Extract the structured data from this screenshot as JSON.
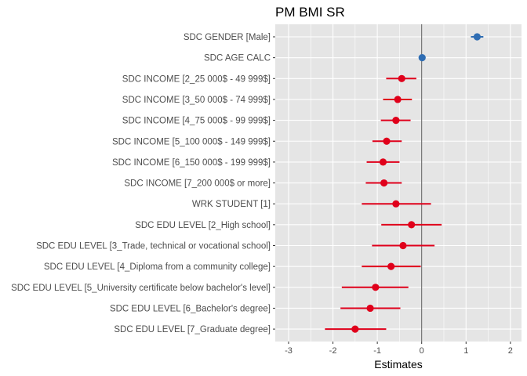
{
  "chart_data": {
    "type": "forest",
    "title": "PM BMI SR",
    "xlabel": "Estimates",
    "ylabel": "",
    "xlim": [
      -3.3,
      2.25
    ],
    "xticks": [
      -3,
      -2,
      -1,
      0,
      1,
      2
    ],
    "reference_line": 0,
    "grid": true,
    "legend": "none",
    "colors": {
      "positive": "#2f6db3",
      "negative": "#e0001b",
      "panel": "#e5e5e5",
      "grid": "#ffffff",
      "reference": "#5a5a5a"
    },
    "terms": [
      {
        "label": "SDC GENDER [Male]",
        "estimate": 1.25,
        "low": 1.11,
        "high": 1.39,
        "direction": "positive"
      },
      {
        "label": "SDC AGE CALC",
        "estimate": 0.01,
        "low": 0.0,
        "high": 0.02,
        "direction": "positive"
      },
      {
        "label": "SDC INCOME [2_25 000$ - 49 999$]",
        "estimate": -0.45,
        "low": -0.8,
        "high": -0.12,
        "direction": "negative"
      },
      {
        "label": "SDC INCOME [3_50 000$ - 74 999$]",
        "estimate": -0.54,
        "low": -0.87,
        "high": -0.22,
        "direction": "negative"
      },
      {
        "label": "SDC INCOME [4_75 000$ - 99 999$]",
        "estimate": -0.58,
        "low": -0.92,
        "high": -0.25,
        "direction": "negative"
      },
      {
        "label": "SDC INCOME [5_100 000$ - 149 999$]",
        "estimate": -0.79,
        "low": -1.11,
        "high": -0.45,
        "direction": "negative"
      },
      {
        "label": "SDC INCOME [6_150 000$ - 199 999$]",
        "estimate": -0.87,
        "low": -1.24,
        "high": -0.5,
        "direction": "negative"
      },
      {
        "label": "SDC INCOME [7_200 000$ or more]",
        "estimate": -0.85,
        "low": -1.26,
        "high": -0.45,
        "direction": "negative"
      },
      {
        "label": "WRK STUDENT [1]",
        "estimate": -0.58,
        "low": -1.35,
        "high": 0.21,
        "direction": "negative"
      },
      {
        "label": "SDC EDU LEVEL [2_High school]",
        "estimate": -0.23,
        "low": -0.91,
        "high": 0.45,
        "direction": "negative"
      },
      {
        "label": "SDC EDU LEVEL [3_Trade, technical or vocational school]",
        "estimate": -0.42,
        "low": -1.12,
        "high": 0.29,
        "direction": "negative"
      },
      {
        "label": "SDC EDU LEVEL [4_Diploma from a community college]",
        "estimate": -0.69,
        "low": -1.35,
        "high": -0.02,
        "direction": "negative"
      },
      {
        "label": "SDC EDU LEVEL [5_University certificate below bachelor's level]",
        "estimate": -1.04,
        "low": -1.8,
        "high": -0.3,
        "direction": "negative"
      },
      {
        "label": "SDC EDU LEVEL [6_Bachelor's degree]",
        "estimate": -1.16,
        "low": -1.83,
        "high": -0.48,
        "direction": "negative"
      },
      {
        "label": "SDC EDU LEVEL [7_Graduate degree]",
        "estimate": -1.5,
        "low": -2.18,
        "high": -0.8,
        "direction": "negative"
      }
    ]
  }
}
